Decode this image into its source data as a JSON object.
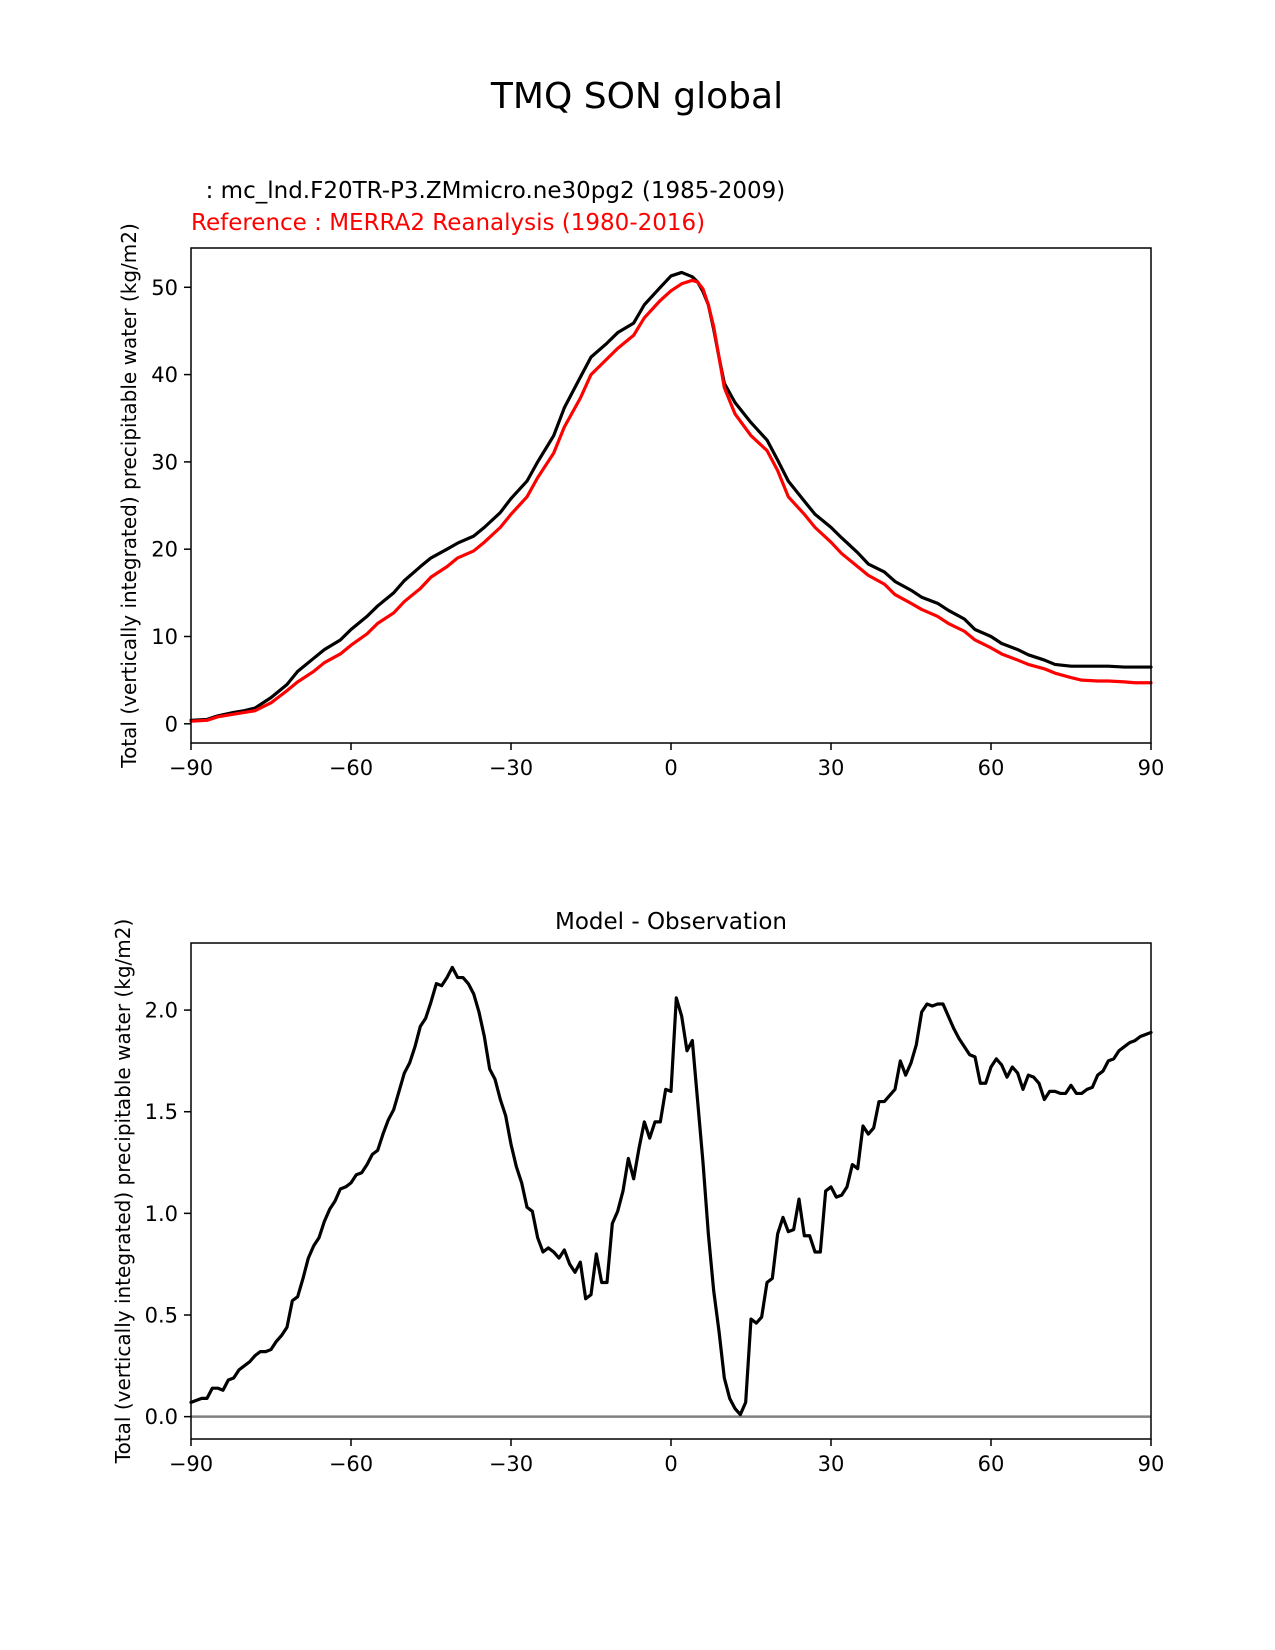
{
  "figure_title": "TMQ SON global",
  "chart_data": [
    {
      "type": "line",
      "model_label": "  : mc_lnd.F20TR-P3.ZMmicro.ne30pg2 (1985-2009)",
      "reference_label": "Reference : MERRA2 Reanalysis (1980-2016)",
      "xlabel": "",
      "ylabel": "Total (vertically integrated) precipitable water (kg/m2)",
      "xlim": [
        -90,
        90
      ],
      "ylim": [
        -2.2,
        54.5
      ],
      "xticks": [
        -90,
        -60,
        -30,
        0,
        30,
        60,
        90
      ],
      "xtick_labels": [
        "−90",
        "−60",
        "−30",
        "0",
        "30",
        "60",
        "90"
      ],
      "yticks": [
        0,
        10,
        20,
        30,
        40,
        50
      ],
      "ytick_labels": [
        "0",
        "10",
        "20",
        "30",
        "40",
        "50"
      ],
      "colors": {
        "model": "#000000",
        "reference": "#ff0000"
      },
      "series": [
        {
          "name": "model",
          "x": [
            -90,
            -87,
            -85,
            -82,
            -80,
            -78,
            -75,
            -72,
            -70,
            -67,
            -65,
            -62,
            -60,
            -57,
            -55,
            -52,
            -50,
            -47,
            -45,
            -42,
            -40,
            -37,
            -35,
            -32,
            -30,
            -27,
            -25,
            -22,
            -20,
            -17,
            -15,
            -12,
            -10,
            -7,
            -5,
            -2,
            0,
            2,
            4,
            5,
            6,
            7,
            8,
            9,
            10,
            12,
            15,
            18,
            20,
            22,
            25,
            27,
            30,
            32,
            35,
            37,
            40,
            42,
            45,
            47,
            50,
            52,
            55,
            57,
            60,
            62,
            65,
            67,
            70,
            72,
            75,
            77,
            80,
            82,
            85,
            87,
            90
          ],
          "values": [
            0.4,
            0.5,
            0.9,
            1.3,
            1.5,
            1.8,
            3.0,
            4.5,
            6.0,
            7.5,
            8.5,
            9.6,
            10.8,
            12.3,
            13.5,
            15.0,
            16.4,
            18.0,
            19.0,
            20.0,
            20.7,
            21.5,
            22.5,
            24.2,
            25.8,
            27.8,
            30.0,
            33.0,
            36.2,
            39.7,
            42.0,
            43.6,
            44.8,
            45.9,
            48.0,
            50.0,
            51.3,
            51.7,
            51.2,
            50.6,
            49.5,
            48.0,
            45.2,
            42.0,
            39.0,
            36.8,
            34.5,
            32.5,
            30.2,
            27.8,
            25.5,
            24.0,
            22.5,
            21.3,
            19.6,
            18.3,
            17.4,
            16.3,
            15.3,
            14.5,
            13.8,
            13.0,
            12.0,
            10.8,
            10.0,
            9.2,
            8.5,
            7.9,
            7.3,
            6.8,
            6.6,
            6.6,
            6.6,
            6.6,
            6.5,
            6.5,
            6.5
          ]
        },
        {
          "name": "reference",
          "x": [
            -90,
            -87,
            -85,
            -82,
            -80,
            -78,
            -75,
            -72,
            -70,
            -67,
            -65,
            -62,
            -60,
            -57,
            -55,
            -52,
            -50,
            -47,
            -45,
            -42,
            -40,
            -37,
            -35,
            -32,
            -30,
            -27,
            -25,
            -22,
            -20,
            -17,
            -15,
            -12,
            -10,
            -7,
            -5,
            -2,
            0,
            2,
            4,
            5,
            6,
            7,
            8,
            9,
            10,
            12,
            15,
            18,
            20,
            22,
            25,
            27,
            30,
            32,
            35,
            37,
            40,
            42,
            45,
            47,
            50,
            52,
            55,
            57,
            60,
            62,
            65,
            67,
            70,
            72,
            75,
            77,
            80,
            82,
            85,
            87,
            90
          ],
          "values": [
            0.3,
            0.4,
            0.8,
            1.1,
            1.3,
            1.5,
            2.4,
            3.8,
            4.8,
            6.0,
            7.0,
            8.0,
            9.0,
            10.3,
            11.5,
            12.7,
            14.0,
            15.5,
            16.8,
            18.0,
            19.0,
            19.8,
            20.8,
            22.5,
            24.0,
            26.0,
            28.2,
            31.0,
            34.0,
            37.3,
            40.0,
            41.8,
            43.0,
            44.5,
            46.5,
            48.5,
            49.6,
            50.4,
            50.8,
            50.6,
            49.8,
            48.0,
            45.5,
            42.0,
            38.5,
            35.5,
            33.0,
            31.3,
            29.0,
            26.0,
            24.0,
            22.5,
            20.8,
            19.5,
            18.0,
            17.0,
            16.0,
            14.8,
            13.8,
            13.1,
            12.3,
            11.5,
            10.6,
            9.6,
            8.7,
            8.0,
            7.3,
            6.8,
            6.3,
            5.8,
            5.3,
            5.0,
            4.9,
            4.9,
            4.8,
            4.7,
            4.7
          ]
        }
      ]
    },
    {
      "type": "line",
      "title": "Model - Observation",
      "xlabel": "",
      "ylabel": "Total (vertically integrated) precipitable water (kg/m2)",
      "xlim": [
        -90,
        90
      ],
      "ylim": [
        -0.11,
        2.33
      ],
      "xticks": [
        -90,
        -60,
        -30,
        0,
        30,
        60,
        90
      ],
      "xtick_labels": [
        "−90",
        "−60",
        "−30",
        "0",
        "30",
        "60",
        "90"
      ],
      "yticks": [
        0.0,
        0.5,
        1.0,
        1.5,
        2.0
      ],
      "ytick_labels": [
        "0.0",
        "0.5",
        "1.0",
        "1.5",
        "2.0"
      ],
      "zero_line_color": "#808080",
      "series": [
        {
          "name": "difference",
          "x": [
            -90,
            -88,
            -87,
            -86,
            -85,
            -84,
            -83,
            -82,
            -81,
            -80,
            -79,
            -78,
            -77,
            -76,
            -75,
            -74,
            -73,
            -72,
            -71,
            -70,
            -69,
            -68,
            -67,
            -66,
            -65,
            -64,
            -63,
            -62,
            -61,
            -60,
            -59,
            -58,
            -57,
            -56,
            -55,
            -54,
            -53,
            -52,
            -51,
            -50,
            -49,
            -48,
            -47,
            -46,
            -45,
            -44,
            -43,
            -42,
            -41,
            -40,
            -39,
            -38,
            -37,
            -36,
            -35,
            -34,
            -33,
            -32,
            -31,
            -30,
            -29,
            -28,
            -27,
            -26,
            -25,
            -24,
            -23,
            -22,
            -21,
            -20,
            -19,
            -18,
            -17,
            -16,
            -15,
            -14,
            -13,
            -12,
            -11,
            -10,
            -9,
            -8,
            -7,
            -6,
            -5,
            -4,
            -3,
            -2,
            -1,
            0,
            1,
            2,
            3,
            4,
            5,
            6,
            7,
            8,
            9,
            10,
            11,
            12,
            13,
            14,
            15,
            16,
            17,
            18,
            19,
            20,
            21,
            22,
            23,
            24,
            25,
            26,
            27,
            28,
            29,
            30,
            31,
            32,
            33,
            34,
            35,
            36,
            37,
            38,
            39,
            40,
            41,
            42,
            43,
            44,
            45,
            46,
            47,
            48,
            49,
            50,
            51,
            52,
            53,
            54,
            55,
            56,
            57,
            58,
            59,
            60,
            61,
            62,
            63,
            64,
            65,
            66,
            67,
            68,
            69,
            70,
            71,
            72,
            73,
            74,
            75,
            76,
            77,
            78,
            79,
            80,
            81,
            82,
            83,
            84,
            85,
            86,
            87,
            88,
            89,
            90
          ],
          "values": [
            0.07,
            0.09,
            0.09,
            0.14,
            0.14,
            0.13,
            0.18,
            0.19,
            0.23,
            0.25,
            0.27,
            0.3,
            0.32,
            0.32,
            0.33,
            0.37,
            0.4,
            0.44,
            0.57,
            0.59,
            0.68,
            0.78,
            0.84,
            0.88,
            0.96,
            1.02,
            1.06,
            1.12,
            1.13,
            1.15,
            1.19,
            1.2,
            1.24,
            1.29,
            1.31,
            1.39,
            1.46,
            1.51,
            1.6,
            1.69,
            1.74,
            1.82,
            1.92,
            1.96,
            2.04,
            2.13,
            2.12,
            2.16,
            2.21,
            2.16,
            2.16,
            2.13,
            2.08,
            1.99,
            1.87,
            1.71,
            1.66,
            1.56,
            1.48,
            1.34,
            1.23,
            1.15,
            1.03,
            1.01,
            0.88,
            0.81,
            0.83,
            0.81,
            0.78,
            0.82,
            0.75,
            0.71,
            0.76,
            0.58,
            0.6,
            0.8,
            0.66,
            0.66,
            0.95,
            1.01,
            1.11,
            1.27,
            1.17,
            1.32,
            1.45,
            1.37,
            1.45,
            1.45,
            1.61,
            1.6,
            2.06,
            1.97,
            1.8,
            1.85,
            1.55,
            1.25,
            0.9,
            0.62,
            0.42,
            0.19,
            0.09,
            0.04,
            0.01,
            0.07,
            0.48,
            0.46,
            0.49,
            0.66,
            0.68,
            0.9,
            0.98,
            0.91,
            0.92,
            1.07,
            0.89,
            0.89,
            0.81,
            0.81,
            1.11,
            1.13,
            1.08,
            1.09,
            1.13,
            1.24,
            1.22,
            1.43,
            1.39,
            1.42,
            1.55,
            1.55,
            1.58,
            1.61,
            1.75,
            1.68,
            1.74,
            1.83,
            1.99,
            2.03,
            2.02,
            2.03,
            2.03,
            1.97,
            1.91,
            1.86,
            1.82,
            1.78,
            1.77,
            1.64,
            1.64,
            1.72,
            1.76,
            1.73,
            1.67,
            1.72,
            1.69,
            1.61,
            1.68,
            1.67,
            1.64,
            1.56,
            1.6,
            1.6,
            1.59,
            1.59,
            1.63,
            1.59,
            1.59,
            1.61,
            1.62,
            1.68,
            1.7,
            1.75,
            1.76,
            1.8,
            1.82,
            1.84,
            1.85,
            1.87,
            1.88,
            1.89
          ]
        }
      ]
    }
  ]
}
